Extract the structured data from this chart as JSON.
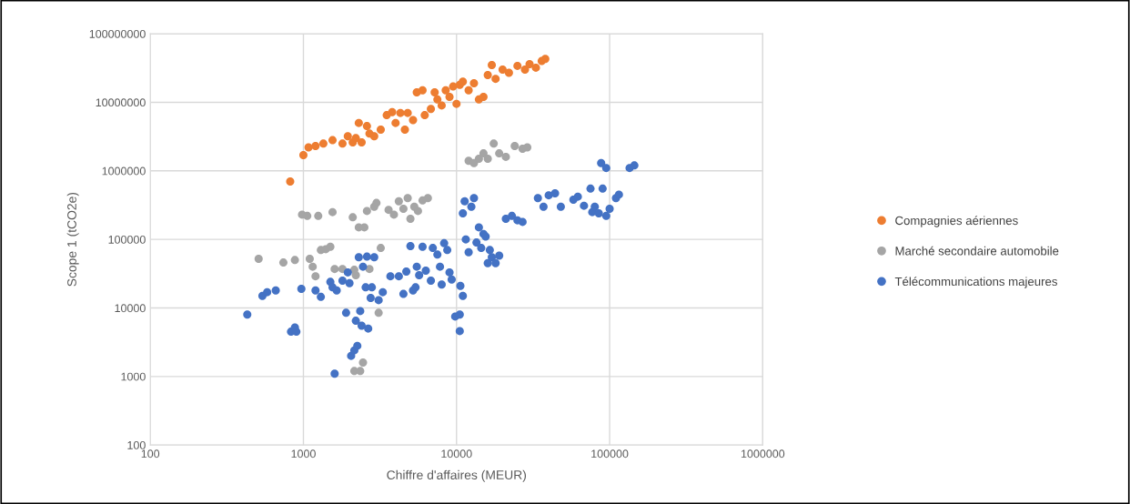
{
  "chart_data": {
    "type": "scatter",
    "xlabel": "Chiffre d'affaires (MEUR)",
    "ylabel": "Scope 1 (tCO2e)",
    "log": "xy",
    "grid": true,
    "legend": "right",
    "marker": "circle",
    "xlim": [
      100,
      1000000
    ],
    "xticks": [
      100,
      1000,
      10000,
      100000,
      1000000
    ],
    "ylim": [
      100,
      100000000
    ],
    "yticks": [
      100,
      1000,
      10000,
      100000,
      1000000,
      10000000,
      100000000
    ],
    "series": [
      {
        "name": "Compagnies aériennes",
        "color": "#ed7d31",
        "x": [
          820,
          1000,
          1080,
          1200,
          1350,
          1550,
          1800,
          1950,
          2100,
          2200,
          2300,
          2400,
          2600,
          2700,
          2900,
          3200,
          3500,
          3800,
          4000,
          4300,
          4600,
          4800,
          5200,
          5500,
          6000,
          6200,
          6800,
          7200,
          7500,
          8000,
          8500,
          9000,
          9500,
          10000,
          10500,
          11000,
          12000,
          13000,
          14000,
          15000,
          16000,
          17000,
          18000,
          20000,
          22000,
          25000,
          28000,
          30000,
          33000,
          36000,
          38000
        ],
        "values": [
          700000,
          1700000,
          2200000,
          2300000,
          2500000,
          2800000,
          2500000,
          3200000,
          2600000,
          3000000,
          5000000,
          2600000,
          4500000,
          3500000,
          3200000,
          4000000,
          6500000,
          7200000,
          5000000,
          7000000,
          4000000,
          7000000,
          5500000,
          14000000,
          15000000,
          6500000,
          8000000,
          14000000,
          11000000,
          9000000,
          15000000,
          12000000,
          17000000,
          9500000,
          18000000,
          20000000,
          15000000,
          19000000,
          11000000,
          12000000,
          25000000,
          35000000,
          22000000,
          30000000,
          27000000,
          34000000,
          30000000,
          36000000,
          32000000,
          40000000,
          43000000
        ]
      },
      {
        "name": "Marché secondaire automobile",
        "color": "#a5a5a5",
        "x": [
          510,
          740,
          880,
          980,
          1060,
          1100,
          1150,
          1200,
          1250,
          1300,
          1400,
          1500,
          1550,
          1600,
          1800,
          2150,
          2100,
          2200,
          2300,
          2500,
          2600,
          2700,
          2900,
          3000,
          3100,
          3200,
          3600,
          3900,
          4200,
          4500,
          4800,
          5000,
          5300,
          6000,
          6500,
          5600,
          2150,
          2450,
          2350,
          12000,
          13000,
          14000,
          15000,
          16000,
          17500,
          19000,
          21000,
          24000,
          27000,
          29000
        ],
        "values": [
          52000,
          46000,
          50000,
          230000,
          220000,
          52000,
          40000,
          29000,
          220000,
          70000,
          72000,
          78000,
          250000,
          37000,
          37000,
          36000,
          210000,
          30000,
          150000,
          150000,
          260000,
          37000,
          300000,
          340000,
          8500,
          75000,
          270000,
          230000,
          360000,
          280000,
          400000,
          200000,
          300000,
          370000,
          400000,
          260000,
          1200,
          1600,
          1200,
          1400000,
          1300000,
          1500000,
          1800000,
          1500000,
          2500000,
          1800000,
          1600000,
          2300000,
          2100000,
          2200000
        ]
      },
      {
        "name": "Télécommunications majeures",
        "color": "#4472c4",
        "x": [
          430,
          540,
          580,
          660,
          830,
          880,
          900,
          970,
          1200,
          1300,
          1500,
          1550,
          1600,
          1650,
          1800,
          1900,
          1950,
          2000,
          2050,
          2150,
          2200,
          2250,
          2300,
          2350,
          2400,
          2450,
          2550,
          2600,
          2650,
          2750,
          2800,
          2900,
          3100,
          3300,
          3700,
          4200,
          4500,
          4700,
          5000,
          5200,
          5400,
          5500,
          5700,
          6000,
          6300,
          6800,
          7000,
          7500,
          7800,
          8000,
          8300,
          8700,
          9000,
          9300,
          9800,
          10500,
          10500,
          11000,
          10600,
          11000,
          11300,
          11500,
          12000,
          12500,
          13000,
          13500,
          14000,
          14500,
          15000,
          15500,
          16000,
          16500,
          17000,
          18000,
          19000,
          21000,
          23000,
          25000,
          27000,
          34000,
          37000,
          40000,
          44000,
          48000,
          58000,
          62000,
          68000,
          75000,
          77000,
          80000,
          85000,
          88000,
          90000,
          95000,
          95000,
          100000,
          110000,
          115000,
          135000,
          145000
        ],
        "values": [
          8000,
          15000,
          17000,
          18000,
          4500,
          5200,
          4500,
          19000,
          18000,
          14500,
          24000,
          20000,
          1100,
          18000,
          25000,
          8500,
          33000,
          23000,
          2000,
          2400,
          6500,
          2800,
          55000,
          9000,
          5500,
          40000,
          20000,
          56000,
          5000,
          14000,
          20000,
          55000,
          13000,
          17000,
          29000,
          29000,
          16000,
          34000,
          80000,
          18000,
          20000,
          40000,
          30000,
          78000,
          35000,
          25000,
          75000,
          60000,
          40000,
          22000,
          88000,
          70000,
          33000,
          26000,
          7500,
          8000,
          4600,
          15000,
          21000,
          240000,
          360000,
          100000,
          65000,
          300000,
          400000,
          90000,
          150000,
          75000,
          120000,
          110000,
          45000,
          70000,
          55000,
          45000,
          58000,
          200000,
          220000,
          190000,
          180000,
          400000,
          300000,
          440000,
          470000,
          300000,
          380000,
          420000,
          310000,
          550000,
          250000,
          300000,
          240000,
          1300000,
          550000,
          1100000,
          220000,
          280000,
          400000,
          450000,
          1100000,
          1200000
        ]
      }
    ]
  }
}
